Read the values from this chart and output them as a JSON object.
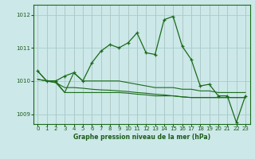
{
  "title": "Graphe pression niveau de la mer (hPa)",
  "background_color": "#cce8e8",
  "line_color": "#1a6b1a",
  "grid_color": "#aacccc",
  "tick_color": "#1a5c1a",
  "ylim": [
    1008.7,
    1012.3
  ],
  "xlim": [
    -0.5,
    23.5
  ],
  "yticks": [
    1009,
    1010,
    1011,
    1012
  ],
  "xticks": [
    0,
    1,
    2,
    3,
    4,
    5,
    6,
    7,
    8,
    9,
    10,
    11,
    12,
    13,
    14,
    15,
    16,
    17,
    18,
    19,
    20,
    21,
    22,
    23
  ],
  "line_main": [
    1010.3,
    1010.0,
    1010.0,
    1010.15,
    1010.25,
    1010.0,
    1010.55,
    1010.9,
    1011.1,
    1011.0,
    1011.15,
    1011.45,
    1010.85,
    1010.8,
    1011.85,
    1011.95,
    1011.05,
    1010.65,
    1009.85,
    1009.9,
    1009.55,
    1009.55,
    1008.75,
    1009.55
  ],
  "line_flat1": [
    1010.05,
    1010.0,
    1009.95,
    1009.65,
    1009.65,
    1009.65,
    1009.65,
    1009.65,
    1009.65,
    1009.65,
    1009.63,
    1009.6,
    1009.58,
    1009.55,
    1009.55,
    1009.55,
    1009.52,
    1009.5,
    1009.5,
    1009.5,
    1009.5,
    1009.5,
    1009.5,
    1009.5
  ],
  "line_flat2": [
    1010.05,
    1010.0,
    1009.95,
    1009.8,
    1009.8,
    1009.78,
    1009.75,
    1009.73,
    1009.72,
    1009.7,
    1009.68,
    1009.65,
    1009.63,
    1009.6,
    1009.58,
    1009.55,
    1009.52,
    1009.5,
    1009.5,
    1009.5,
    1009.5,
    1009.5,
    1009.5,
    1009.5
  ],
  "line_mid": [
    1010.3,
    1010.0,
    1010.0,
    1009.65,
    1010.25,
    1010.0,
    1010.0,
    1010.0,
    1010.0,
    1010.0,
    1009.95,
    1009.9,
    1009.85,
    1009.8,
    1009.8,
    1009.8,
    1009.75,
    1009.75,
    1009.7,
    1009.7,
    1009.65,
    1009.65,
    1009.65,
    1009.65
  ]
}
